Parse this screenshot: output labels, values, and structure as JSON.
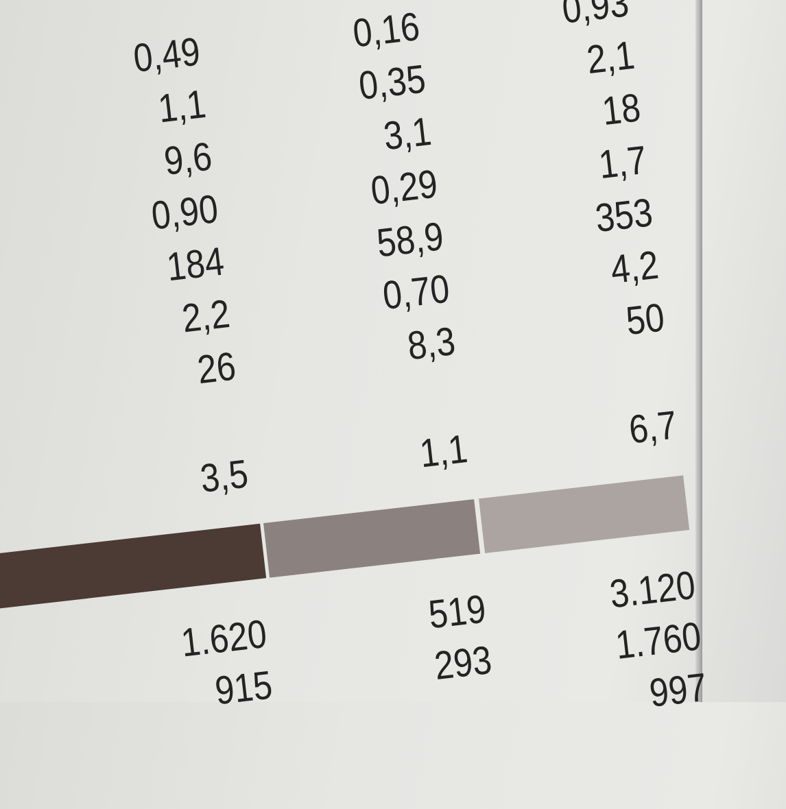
{
  "columns": [
    {
      "values": [
        "0,49",
        "1,1",
        "9,6",
        "0,90",
        "184",
        "2,2",
        "26"
      ],
      "summary": "3,5",
      "bar_color": "#4b3b34",
      "totals": [
        "1.620",
        "915"
      ]
    },
    {
      "values": [
        "0,16",
        "0,35",
        "3,1",
        "0,29",
        "58,9",
        "0,70",
        "8,3"
      ],
      "summary": "1,1",
      "bar_color": "#8b817e",
      "totals": [
        "519",
        "293"
      ]
    },
    {
      "values": [
        "0,93",
        "2,1",
        "18",
        "1,7",
        "353",
        "4,2",
        "50"
      ],
      "summary": "6,7",
      "bar_color": "#aba4a1",
      "totals": [
        "3.120",
        "1.760",
        "997"
      ]
    }
  ]
}
